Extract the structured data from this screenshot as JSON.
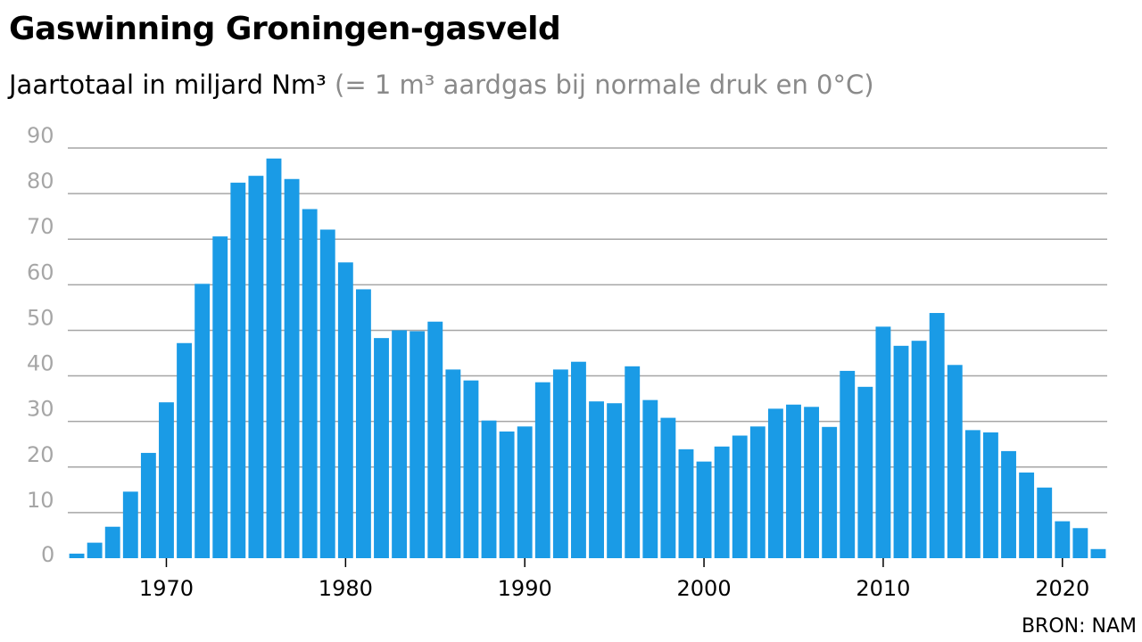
{
  "title": "Gaswinning Groningen-gasveld",
  "subtitle": "Jaartotaal in miljard Nm³",
  "subtitle_note": "(= 1 m³ aardgas bij normale druk en 0°C)",
  "source": "BRON: NAM",
  "colors": {
    "bar": "#1a9be6",
    "grid": "#a6a6a6",
    "tick_label": "#a6a6a6",
    "x_label": "#000000",
    "subtitle_note": "#8a8a8a"
  },
  "chart_data": {
    "type": "bar",
    "title": "Gaswinning Groningen-gasveld",
    "subtitle": "Jaartotaal in miljard Nm³ (= 1 m³ aardgas bij normale druk en 0°C)",
    "xlabel": "",
    "ylabel": "",
    "ylim": [
      0,
      90
    ],
    "xlim": [
      1964.5,
      2022.5
    ],
    "grid": true,
    "legend": "none",
    "y_ticks": [
      0,
      10,
      20,
      30,
      40,
      50,
      60,
      70,
      80,
      90
    ],
    "x_ticks": [
      1970,
      1980,
      1990,
      2000,
      2010,
      2020
    ],
    "categories": [
      1965,
      1966,
      1967,
      1968,
      1969,
      1970,
      1971,
      1972,
      1973,
      1974,
      1975,
      1976,
      1977,
      1978,
      1979,
      1980,
      1981,
      1982,
      1983,
      1984,
      1985,
      1986,
      1987,
      1988,
      1989,
      1990,
      1991,
      1992,
      1993,
      1994,
      1995,
      1996,
      1997,
      1998,
      1999,
      2000,
      2001,
      2002,
      2003,
      2004,
      2005,
      2006,
      2007,
      2008,
      2009,
      2010,
      2011,
      2012,
      2013,
      2014,
      2015,
      2016,
      2017,
      2018,
      2019,
      2020,
      2021,
      2022
    ],
    "values": [
      1.0,
      3.4,
      6.9,
      14.6,
      23.1,
      34.2,
      47.2,
      60.2,
      70.6,
      82.4,
      83.9,
      87.7,
      83.2,
      76.6,
      72.1,
      64.9,
      59.0,
      48.3,
      50.0,
      49.8,
      51.9,
      41.4,
      39.0,
      30.2,
      27.8,
      28.9,
      38.6,
      41.4,
      43.1,
      34.4,
      34.0,
      42.1,
      34.7,
      30.8,
      23.9,
      21.2,
      24.5,
      26.9,
      28.9,
      32.8,
      33.7,
      33.2,
      28.8,
      41.1,
      37.6,
      50.8,
      46.6,
      47.7,
      53.8,
      42.4,
      28.1,
      27.6,
      23.5,
      18.8,
      15.5,
      8.1,
      6.6,
      2.0
    ]
  }
}
